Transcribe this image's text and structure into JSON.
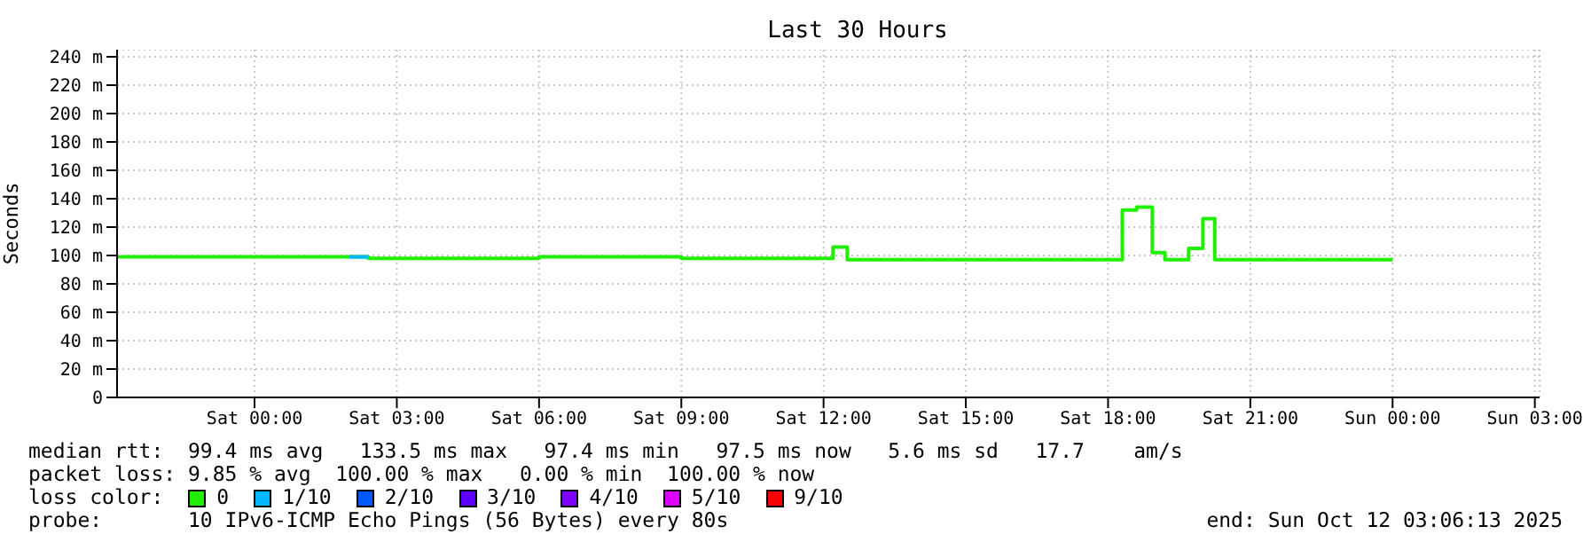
{
  "chart_data": {
    "type": "step",
    "title": "Last 30 Hours",
    "ylabel": "Seconds",
    "xlim": [
      "2025-10-10T21:06",
      "2025-10-12T03:06"
    ],
    "xticks": [
      {
        "value": "2025-10-11T00:00",
        "label": "Sat 00:00"
      },
      {
        "value": "2025-10-11T03:00",
        "label": "Sat 03:00"
      },
      {
        "value": "2025-10-11T06:00",
        "label": "Sat 06:00"
      },
      {
        "value": "2025-10-11T09:00",
        "label": "Sat 09:00"
      },
      {
        "value": "2025-10-11T12:00",
        "label": "Sat 12:00"
      },
      {
        "value": "2025-10-11T15:00",
        "label": "Sat 15:00"
      },
      {
        "value": "2025-10-11T18:00",
        "label": "Sat 18:00"
      },
      {
        "value": "2025-10-11T21:00",
        "label": "Sat 21:00"
      },
      {
        "value": "2025-10-12T00:00",
        "label": "Sun 00:00"
      },
      {
        "value": "2025-10-12T03:00",
        "label": "Sun 03:00"
      }
    ],
    "ylim": [
      0,
      245
    ],
    "yticks": [
      {
        "value": 0,
        "label": "0"
      },
      {
        "value": 20,
        "label": "20 m"
      },
      {
        "value": 40,
        "label": "40 m"
      },
      {
        "value": 60,
        "label": "60 m"
      },
      {
        "value": 80,
        "label": "80 m"
      },
      {
        "value": 100,
        "label": "100 m"
      },
      {
        "value": 120,
        "label": "120 m"
      },
      {
        "value": 140,
        "label": "140 m"
      },
      {
        "value": 160,
        "label": "160 m"
      },
      {
        "value": 180,
        "label": "180 m"
      },
      {
        "value": 200,
        "label": "200 m"
      },
      {
        "value": 220,
        "label": "220 m"
      },
      {
        "value": 240,
        "label": "240 m"
      }
    ],
    "grid": true,
    "legend": "bottom",
    "legend_title": "loss color:",
    "series": [
      {
        "name": "0",
        "color": "#20f000",
        "x": [
          "2025-10-10T21:06",
          "2025-10-10T23:06",
          "2025-10-11T00:00",
          "2025-10-11T02:00",
          "2025-10-11T02:24",
          "2025-10-11T04:00",
          "2025-10-11T06:00",
          "2025-10-11T09:00",
          "2025-10-11T11:00",
          "2025-10-11T12:12",
          "2025-10-11T12:30",
          "2025-10-11T18:18",
          "2025-10-11T18:36",
          "2025-10-11T18:56",
          "2025-10-11T19:12",
          "2025-10-11T19:42",
          "2025-10-11T20:00",
          "2025-10-11T20:15",
          "2025-10-12T00:00"
        ],
        "values": [
          99,
          99,
          99,
          99,
          98,
          98,
          99,
          98,
          98,
          106,
          97,
          132,
          134,
          102,
          97,
          105,
          126,
          97,
          97
        ]
      },
      {
        "name": "1/10",
        "color": "#00b8ff",
        "x": [
          "2025-10-11T02:00",
          "2025-10-11T02:24"
        ],
        "values": [
          99,
          99
        ]
      },
      {
        "name": "2/10",
        "color": "#0059ff"
      },
      {
        "name": "3/10",
        "color": "#5e00ff"
      },
      {
        "name": "4/10",
        "color": "#7e00ff"
      },
      {
        "name": "5/10",
        "color": "#dd00ff"
      },
      {
        "name": "9/10",
        "color": "#ff0000"
      }
    ],
    "annotations": [
      "median rtt:  99.4 ms avg   133.5 ms max   97.4 ms min   97.5 ms now   5.6 ms sd   17.7    am/s",
      "packet loss: 9.85 % avg  100.00 % max   0.00 % min  100.00 % now",
      "probe:       10 IPv6-ICMP Echo Pings (56 Bytes) every 80s",
      "end: Sun Oct 12 03:06:13 2025"
    ]
  }
}
